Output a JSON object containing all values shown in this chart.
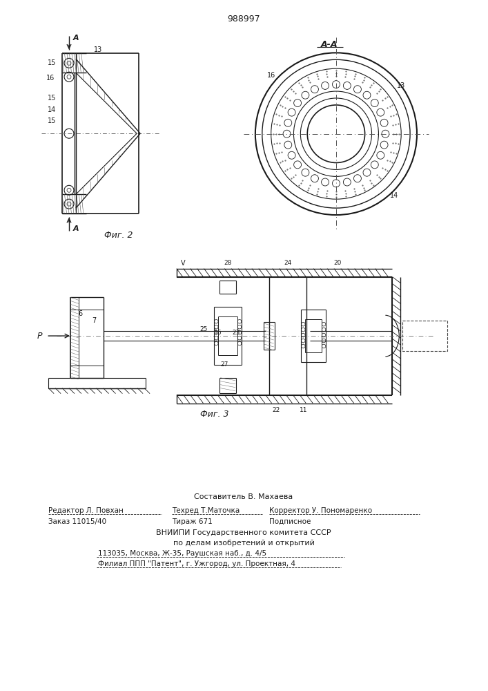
{
  "patent_number": "988997",
  "fig2_label": "Фиг. 2",
  "fig3_label": "Фиг. 3",
  "footer_line1": "Составитель В. Махаева",
  "footer_line2a": "Редактор Л. Повхан",
  "footer_line2b": "Техред Т.Маточка",
  "footer_line2c": "Корректор У. Пономаренко",
  "footer_line3a": "Заказ 11015/40",
  "footer_line3b": "Тираж 671",
  "footer_line3c": "Подписное",
  "footer_line4": "ВНИИПИ Государственного комитета СССР",
  "footer_line5": "по делам изобретений и открытий",
  "footer_line6": "113035, Москва, Ж-35, Раушская наб., д. 4/5",
  "footer_line7": "Филиал ППП \"Патент\", г. Ужгород, ул. Проектная, 4",
  "bg_color": "#ffffff",
  "line_color": "#1a1a1a"
}
